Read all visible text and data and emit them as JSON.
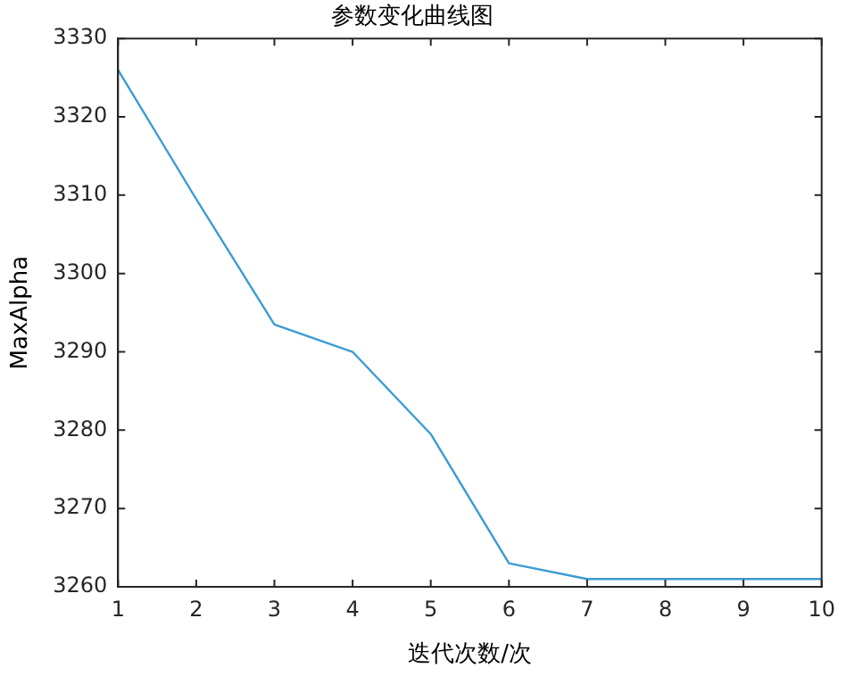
{
  "chart_data": {
    "type": "line",
    "title": "参数变化曲线图",
    "xlabel": "迭代次数/次",
    "ylabel": "MaxAlpha",
    "x": [
      1,
      2,
      3,
      4,
      5,
      6,
      7,
      8,
      9,
      10
    ],
    "series": [
      {
        "color": "#3b9bd3",
        "values": [
          3326,
          3309.5,
          3293.5,
          3290,
          3279.5,
          3263,
          3261,
          3261,
          3261,
          3261
        ]
      }
    ],
    "xlim": [
      1,
      10
    ],
    "xticks": [
      1,
      2,
      3,
      4,
      5,
      6,
      7,
      8,
      9,
      10
    ],
    "ylim": [
      3260,
      3330
    ],
    "yticks": [
      3260,
      3270,
      3280,
      3290,
      3300,
      3310,
      3320,
      3330
    ],
    "grid": false,
    "legend": false,
    "marker": "none",
    "line_style": "solid"
  }
}
